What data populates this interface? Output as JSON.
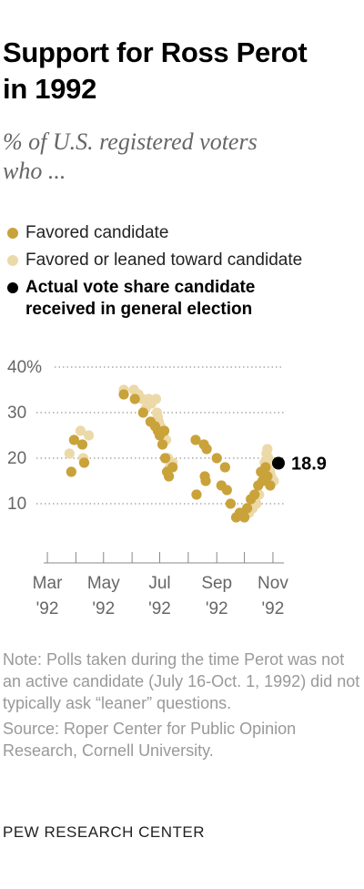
{
  "header": {
    "title_line1": "Support for Ross Perot",
    "title_line2": "in 1992",
    "subtitle_line1": "% of U.S. registered voters",
    "subtitle_line2": "who ..."
  },
  "legend": {
    "favored": "Favored candidate",
    "leaned": "Favored or leaned toward candidate",
    "actual_line1": "Actual vote share candidate",
    "actual_line2": "received in general election"
  },
  "notes": {
    "note": "Note: Polls taken during the time Perot was not an active candidate (July 16-Oct. 1, 1992) did not typically ask “leaner” questions.",
    "source": "Source: Roper Center for Public Opinion Research, Cornell University."
  },
  "org": "PEW RESEARCH CENTER",
  "colors": {
    "favored": "#c9a23a",
    "leaned": "#ecd9a8",
    "actual": "#000000",
    "grid": "#999999",
    "axis_text": "#666666"
  },
  "chart_data": {
    "type": "scatter",
    "title": "Support for Ross Perot in 1992",
    "subtitle": "% of U.S. registered voters who ...",
    "x_axis": {
      "type": "date",
      "range": [
        "1992-02-26",
        "1992-11-06"
      ],
      "ticks": [
        {
          "date": "1992-03-01",
          "month": "Mar",
          "year": "'92"
        },
        {
          "date": "1992-05-01",
          "month": "May",
          "year": "'92"
        },
        {
          "date": "1992-07-01",
          "month": "Jul",
          "year": "'92"
        },
        {
          "date": "1992-09-01",
          "month": "Sep",
          "year": "'92"
        },
        {
          "date": "1992-11-01",
          "month": "Nov",
          "year": "'92"
        }
      ]
    },
    "y_axis": {
      "range": [
        5,
        42
      ],
      "ticks": [
        10,
        20,
        30,
        40
      ],
      "tick_labels": [
        "10",
        "20",
        "30",
        "40%"
      ],
      "grid": true
    },
    "series": [
      {
        "name": "Favored or leaned toward candidate",
        "color": "#ecd9a8",
        "points": [
          {
            "x": "1992-03-25",
            "y": 21
          },
          {
            "x": "1992-04-06",
            "y": 26
          },
          {
            "x": "1992-04-09",
            "y": 20
          },
          {
            "x": "1992-04-15",
            "y": 25
          },
          {
            "x": "1992-05-23",
            "y": 35
          },
          {
            "x": "1992-06-03",
            "y": 35
          },
          {
            "x": "1992-06-08",
            "y": 34
          },
          {
            "x": "1992-06-12",
            "y": 33
          },
          {
            "x": "1992-06-16",
            "y": 31
          },
          {
            "x": "1992-06-19",
            "y": 33
          },
          {
            "x": "1992-06-22",
            "y": 32
          },
          {
            "x": "1992-06-27",
            "y": 33
          },
          {
            "x": "1992-06-28",
            "y": 30
          },
          {
            "x": "1992-06-29",
            "y": 29
          },
          {
            "x": "1992-06-30",
            "y": 28
          },
          {
            "x": "1992-07-02",
            "y": 27
          },
          {
            "x": "1992-07-05",
            "y": 25
          },
          {
            "x": "1992-07-08",
            "y": 24
          },
          {
            "x": "1992-07-10",
            "y": 20
          },
          {
            "x": "1992-07-12",
            "y": 18
          },
          {
            "x": "1992-07-15",
            "y": 19
          },
          {
            "x": "1992-10-06",
            "y": 8
          },
          {
            "x": "1992-10-10",
            "y": 9
          },
          {
            "x": "1992-10-14",
            "y": 10
          },
          {
            "x": "1992-10-17",
            "y": 12
          },
          {
            "x": "1992-10-20",
            "y": 15
          },
          {
            "x": "1992-10-22",
            "y": 17
          },
          {
            "x": "1992-10-23",
            "y": 19
          },
          {
            "x": "1992-10-25",
            "y": 21
          },
          {
            "x": "1992-10-26",
            "y": 22
          },
          {
            "x": "1992-10-27",
            "y": 20
          },
          {
            "x": "1992-10-28",
            "y": 19
          },
          {
            "x": "1992-10-29",
            "y": 17
          },
          {
            "x": "1992-10-30",
            "y": 16
          },
          {
            "x": "1992-11-02",
            "y": 15
          }
        ]
      },
      {
        "name": "Favored candidate",
        "color": "#c9a23a",
        "points": [
          {
            "x": "1992-03-27",
            "y": 17
          },
          {
            "x": "1992-03-30",
            "y": 24
          },
          {
            "x": "1992-04-08",
            "y": 23
          },
          {
            "x": "1992-04-10",
            "y": 19
          },
          {
            "x": "1992-05-23",
            "y": 34
          },
          {
            "x": "1992-06-04",
            "y": 33
          },
          {
            "x": "1992-06-13",
            "y": 30
          },
          {
            "x": "1992-06-21",
            "y": 28
          },
          {
            "x": "1992-06-26",
            "y": 27
          },
          {
            "x": "1992-06-29",
            "y": 26
          },
          {
            "x": "1992-07-01",
            "y": 25
          },
          {
            "x": "1992-07-04",
            "y": 23
          },
          {
            "x": "1992-07-06",
            "y": 26
          },
          {
            "x": "1992-07-07",
            "y": 20
          },
          {
            "x": "1992-07-09",
            "y": 17
          },
          {
            "x": "1992-07-11",
            "y": 16
          },
          {
            "x": "1992-07-15",
            "y": 18
          },
          {
            "x": "1992-08-09",
            "y": 24
          },
          {
            "x": "1992-08-10",
            "y": 12
          },
          {
            "x": "1992-08-18",
            "y": 23
          },
          {
            "x": "1992-08-19",
            "y": 16
          },
          {
            "x": "1992-08-20",
            "y": 15
          },
          {
            "x": "1992-08-21",
            "y": 22
          },
          {
            "x": "1992-09-01",
            "y": 20
          },
          {
            "x": "1992-09-06",
            "y": 14
          },
          {
            "x": "1992-09-10",
            "y": 18
          },
          {
            "x": "1992-09-12",
            "y": 13
          },
          {
            "x": "1992-09-16",
            "y": 10
          },
          {
            "x": "1992-09-22",
            "y": 7
          },
          {
            "x": "1992-09-26",
            "y": 8
          },
          {
            "x": "1992-10-01",
            "y": 7
          },
          {
            "x": "1992-10-04",
            "y": 9
          },
          {
            "x": "1992-10-08",
            "y": 11
          },
          {
            "x": "1992-10-12",
            "y": 12
          },
          {
            "x": "1992-10-16",
            "y": 14
          },
          {
            "x": "1992-10-19",
            "y": 17
          },
          {
            "x": "1992-10-21",
            "y": 15
          },
          {
            "x": "1992-10-24",
            "y": 18
          },
          {
            "x": "1992-10-26",
            "y": 16
          },
          {
            "x": "1992-10-29",
            "y": 14
          }
        ]
      }
    ],
    "annotation": {
      "x": "1992-11-03",
      "y": 18.9,
      "label": "18.9",
      "series": "Actual vote share candidate received in general election",
      "color": "#000000"
    }
  }
}
